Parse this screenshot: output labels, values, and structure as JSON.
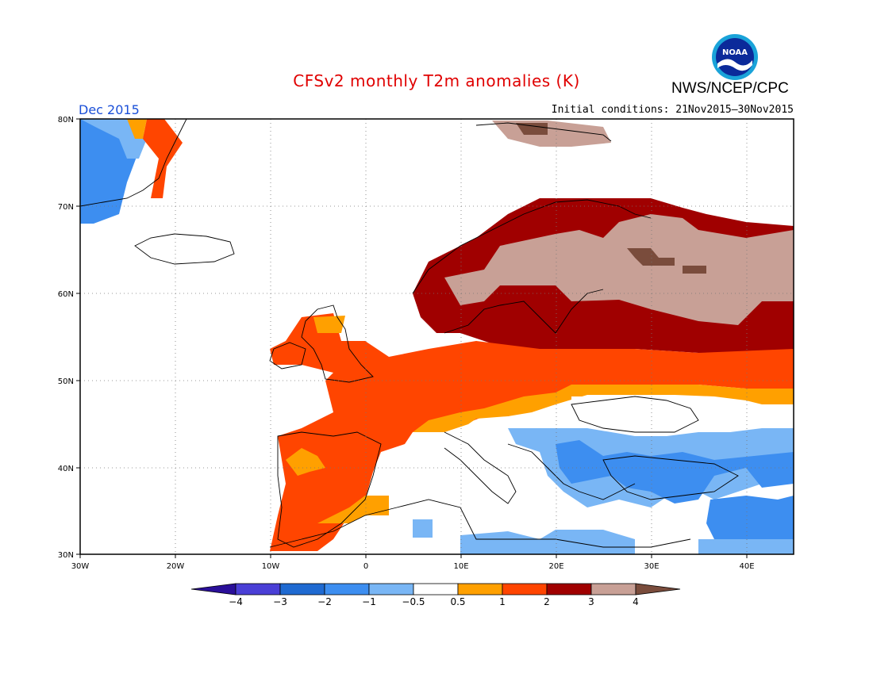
{
  "header": {
    "title": "CFSv2 monthly T2m anomalies (K)",
    "agency": "NWS/NCEP/CPC",
    "logo_text": "NOAA",
    "month": "Dec 2015",
    "initial_conditions": "Initial conditions: 21Nov2015—30Nov2015"
  },
  "axes": {
    "lon_labels": [
      "30W",
      "20W",
      "10W",
      "0",
      "10E",
      "20E",
      "30E",
      "40E"
    ],
    "lat_labels": [
      "80N",
      "70N",
      "60N",
      "50N",
      "40N",
      "30N"
    ]
  },
  "colorbar": {
    "levels": [
      "−4",
      "−3",
      "−2",
      "−1",
      "−0.5",
      "0.5",
      "1",
      "2",
      "3",
      "4"
    ],
    "colors": [
      "#2a0f99",
      "#4a3fd6",
      "#1f6ad1",
      "#3d8ef0",
      "#79b6f5",
      "#ffffff",
      "#ffa000",
      "#ff4500",
      "#a00000",
      "#c8a096",
      "#7a4c3c"
    ]
  },
  "map_region": {
    "lon_range": [
      "30W",
      "45E"
    ],
    "lat_range": [
      "30N",
      "80N"
    ]
  },
  "anomaly_regions": [
    {
      "category": "3 to 4",
      "color": "#c8a096"
    },
    {
      "category": "2 to 3",
      "color": "#a00000"
    },
    {
      "category": "1 to 2",
      "color": "#ff4500"
    },
    {
      "category": "0.5 to 1",
      "color": "#ffa000"
    },
    {
      "category": "-1 to -0.5",
      "color": "#79b6f5"
    },
    {
      "category": "-2 to -1",
      "color": "#3d8ef0"
    },
    {
      "category": "above 4",
      "color": "#7a4c3c"
    }
  ]
}
